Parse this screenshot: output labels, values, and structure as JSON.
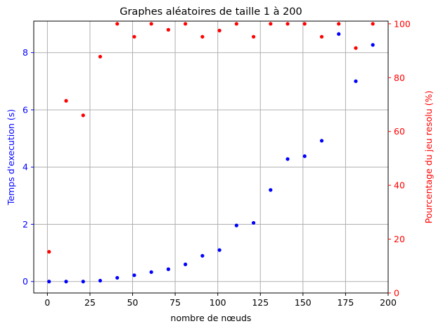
{
  "chart_data": {
    "type": "scatter",
    "title": "Graphes aléatoires de taille 1 à 200",
    "xlabel": "nombre de nœuds",
    "ylabel_left": "Temps d'execution (s)",
    "ylabel_right": "Pourcentage du jeu resolu (%)",
    "xlim": [
      -8,
      200
    ],
    "ylim_left": [
      -0.4,
      9.1
    ],
    "ylim_right": [
      0,
      101
    ],
    "x_ticks": [
      0,
      25,
      50,
      75,
      100,
      125,
      150,
      175,
      200
    ],
    "y_ticks_left": [
      0,
      2,
      4,
      6,
      8
    ],
    "y_ticks_right": [
      0,
      20,
      40,
      60,
      80,
      100
    ],
    "grid": true,
    "series": [
      {
        "axis": "left",
        "color": "#0000ff",
        "x": [
          1,
          11,
          21,
          31,
          41,
          51,
          61,
          71,
          81,
          91,
          101,
          111,
          121,
          131,
          141,
          151,
          161,
          171,
          181,
          191
        ],
        "y": [
          0.0,
          0.0,
          0.0,
          0.03,
          0.13,
          0.22,
          0.33,
          0.43,
          0.6,
          0.9,
          1.1,
          1.96,
          2.05,
          3.2,
          4.28,
          4.38,
          4.92,
          8.65,
          7.0,
          8.27
        ]
      },
      {
        "axis": "right",
        "color": "#ff0000",
        "x": [
          1,
          11,
          21,
          31,
          41,
          51,
          61,
          71,
          81,
          91,
          101,
          111,
          121,
          131,
          141,
          151,
          161,
          171,
          181,
          191
        ],
        "y": [
          15.3,
          71.4,
          66.0,
          87.8,
          100,
          95.2,
          100,
          97.8,
          100,
          95.2,
          97.5,
          100,
          95.2,
          100,
          100,
          100,
          95.2,
          100,
          91.0,
          100
        ]
      }
    ],
    "colors": {
      "left_axis": "#0000ff",
      "right_axis": "#ff0000",
      "grid": "#b0b0b0"
    }
  }
}
